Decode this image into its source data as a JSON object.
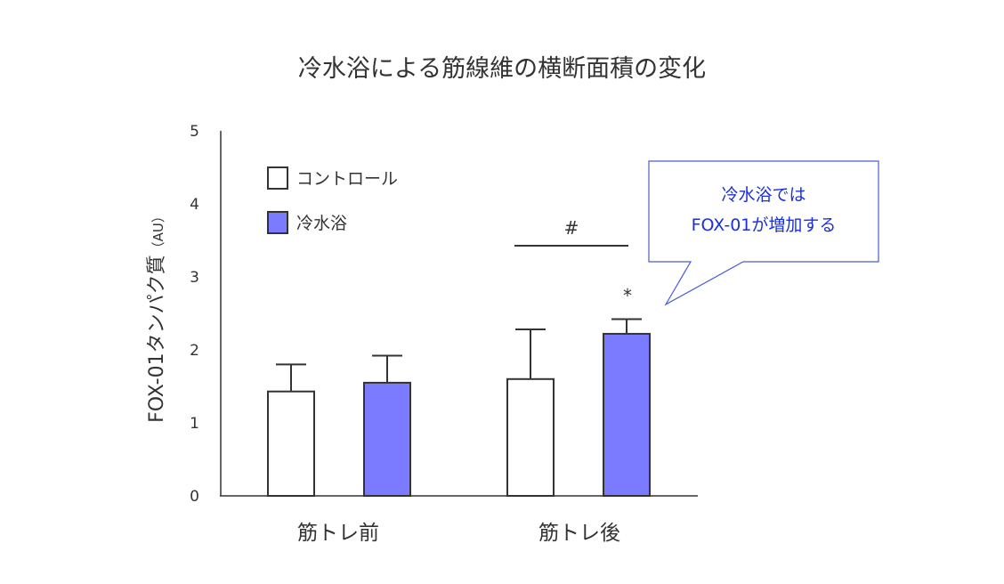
{
  "chart_data": {
    "type": "bar",
    "title": "冷水浴による筋線維の横断面積の変化",
    "ylabel": "FOX-01タンパク質",
    "ylabel_unit": "（AU）",
    "xlabel": "",
    "ylim": [
      0,
      5
    ],
    "yticks": [
      0,
      1,
      2,
      3,
      4,
      5
    ],
    "categories": [
      "筋トレ前",
      "筋トレ後"
    ],
    "series": [
      {
        "name": "コントロール",
        "values": [
          1.43,
          1.6
        ],
        "errors": [
          0.37,
          0.68
        ],
        "color": "#ffffff"
      },
      {
        "name": "冷水浴",
        "values": [
          1.55,
          2.22
        ],
        "errors": [
          0.37,
          0.2
        ],
        "color": "#7b7bff"
      }
    ],
    "annotations": {
      "star": "*",
      "hash": "#",
      "callout_lines": [
        "冷水浴では",
        "FOX-01が増加する"
      ]
    },
    "legend_position": "top-left",
    "colors": {
      "accent": "#7b7bff",
      "callout_text": "#1a2fe0",
      "callout_border": "#4a5ad8"
    }
  }
}
